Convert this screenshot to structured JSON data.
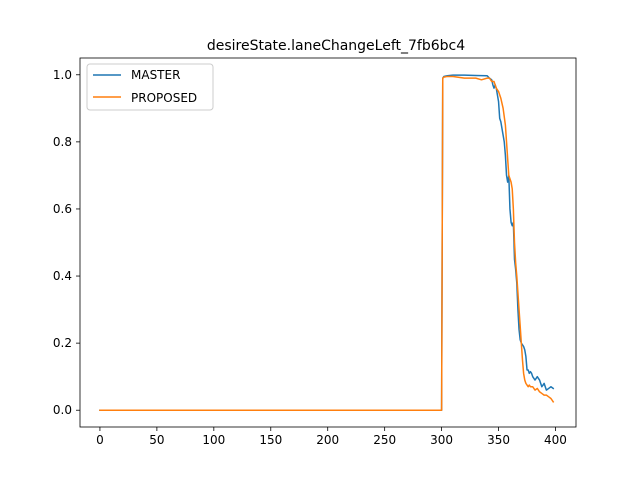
{
  "chart_data": {
    "type": "line",
    "title": "desireState.laneChangeLeft_7fb6bc4",
    "xlabel": "",
    "ylabel": "",
    "xlim": [
      -17.5,
      418
    ],
    "ylim": [
      -0.05,
      1.05
    ],
    "xticks": [
      0,
      50,
      100,
      150,
      200,
      250,
      300,
      350,
      400
    ],
    "yticks": [
      0.0,
      0.2,
      0.4,
      0.6,
      0.8,
      1.0
    ],
    "xtick_labels": [
      "0",
      "50",
      "100",
      "150",
      "200",
      "250",
      "300",
      "350",
      "400"
    ],
    "ytick_labels": [
      "0.0",
      "0.2",
      "0.4",
      "0.6",
      "0.8",
      "1.0"
    ],
    "grid": false,
    "legend_position": "upper-left",
    "series": [
      {
        "name": "MASTER",
        "color": "#1f77b4",
        "x": [
          0,
          100,
          200,
          300,
          301,
          302,
          305,
          310,
          320,
          330,
          340,
          342,
          344,
          345,
          346,
          347,
          348,
          349,
          350,
          351,
          352,
          353,
          354,
          355,
          356,
          357,
          358,
          359,
          360,
          361,
          362,
          363,
          364,
          365,
          366,
          367,
          368,
          369,
          370,
          371,
          372,
          373,
          374,
          375,
          376,
          377,
          378,
          379,
          380,
          382,
          384,
          386,
          388,
          390,
          392,
          394,
          396,
          398
        ],
        "y": [
          0.0,
          0.0,
          0.0,
          0.0,
          0.99,
          0.995,
          0.997,
          0.999,
          0.999,
          0.998,
          0.997,
          0.99,
          0.985,
          0.97,
          0.96,
          0.97,
          0.96,
          0.94,
          0.92,
          0.87,
          0.86,
          0.84,
          0.82,
          0.8,
          0.76,
          0.7,
          0.68,
          0.7,
          0.6,
          0.56,
          0.55,
          0.56,
          0.45,
          0.42,
          0.38,
          0.3,
          0.24,
          0.21,
          0.2,
          0.195,
          0.19,
          0.18,
          0.16,
          0.12,
          0.12,
          0.11,
          0.115,
          0.11,
          0.1,
          0.09,
          0.1,
          0.09,
          0.07,
          0.08,
          0.06,
          0.065,
          0.07,
          0.065
        ]
      },
      {
        "name": "PROPOSED",
        "color": "#ff7f0e",
        "x": [
          0,
          100,
          200,
          300,
          301,
          302,
          305,
          310,
          320,
          330,
          335,
          340,
          342,
          344,
          346,
          348,
          350,
          352,
          354,
          356,
          357,
          358,
          359,
          360,
          361,
          362,
          363,
          364,
          365,
          366,
          367,
          368,
          369,
          370,
          371,
          372,
          373,
          374,
          375,
          376,
          377,
          378,
          380,
          382,
          384,
          386,
          388,
          390,
          392,
          394,
          396,
          398
        ],
        "y": [
          0.0,
          0.0,
          0.0,
          0.0,
          0.99,
          0.993,
          0.995,
          0.995,
          0.99,
          0.99,
          0.985,
          0.99,
          0.99,
          0.98,
          0.98,
          0.96,
          0.95,
          0.93,
          0.9,
          0.85,
          0.8,
          0.75,
          0.7,
          0.69,
          0.68,
          0.66,
          0.6,
          0.5,
          0.44,
          0.4,
          0.35,
          0.3,
          0.25,
          0.2,
          0.15,
          0.11,
          0.09,
          0.08,
          0.075,
          0.07,
          0.075,
          0.07,
          0.07,
          0.06,
          0.065,
          0.055,
          0.05,
          0.045,
          0.045,
          0.04,
          0.035,
          0.025
        ]
      }
    ]
  }
}
